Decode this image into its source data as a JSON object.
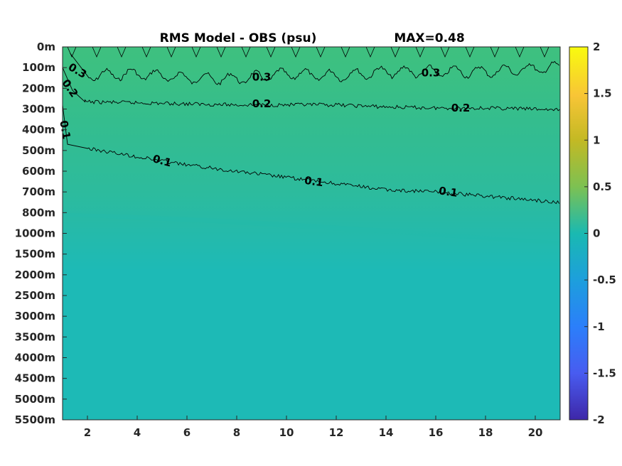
{
  "chart_data": {
    "type": "heatmap",
    "title": "RMS Model - OBS (psu)",
    "annotation": "MAX=0.48",
    "xlabel": "",
    "ylabel": "",
    "xlim": [
      1,
      21
    ],
    "x_ticks": [
      "2",
      "4",
      "6",
      "8",
      "10",
      "12",
      "14",
      "16",
      "18",
      "20"
    ],
    "y_ticks": [
      "0m",
      "100m",
      "200m",
      "300m",
      "400m",
      "500m",
      "600m",
      "700m",
      "800m",
      "1000m",
      "1500m",
      "2000m",
      "2500m",
      "3000m",
      "3500m",
      "4000m",
      "4500m",
      "5000m",
      "5500m"
    ],
    "colorbar": {
      "range": [
        -2,
        2
      ],
      "ticks": [
        "2",
        "1.5",
        "1",
        "0.5",
        "0",
        "-0.5",
        "-1",
        "-1.5",
        "-2"
      ]
    },
    "contour_levels": [
      0.3,
      0.2,
      0.1
    ],
    "contours": [
      {
        "level": 0.3,
        "labels": [
          "0.3",
          "0.3",
          "0.3"
        ],
        "points": [
          [
            1.3,
            0.3
          ],
          [
            2,
            1.4
          ],
          [
            4,
            1.3
          ],
          [
            6,
            1.5
          ],
          [
            8,
            1.55
          ],
          [
            10,
            1.3
          ],
          [
            12,
            1.4
          ],
          [
            14,
            1.2
          ],
          [
            16,
            1.2
          ],
          [
            18,
            1.2
          ],
          [
            20,
            1.05
          ],
          [
            21,
            1.0
          ]
        ]
      },
      {
        "level": 0.2,
        "labels": [
          "0.2",
          "0.2",
          "0.2"
        ],
        "points": [
          [
            1.0,
            1.0
          ],
          [
            1.4,
            2.1
          ],
          [
            1.9,
            2.65
          ],
          [
            4,
            2.7
          ],
          [
            6,
            2.75
          ],
          [
            8,
            2.8
          ],
          [
            10,
            2.8
          ],
          [
            12,
            2.8
          ],
          [
            14,
            2.9
          ],
          [
            16,
            2.95
          ],
          [
            18,
            2.95
          ],
          [
            20,
            3.0
          ],
          [
            21,
            3.05
          ]
        ]
      },
      {
        "level": 0.1,
        "labels": [
          "0.1",
          "0.1",
          "0.1"
        ],
        "points": [
          [
            1.0,
            2.8
          ],
          [
            1.2,
            4.7
          ],
          [
            2,
            4.9
          ],
          [
            4,
            5.3
          ],
          [
            6,
            5.7
          ],
          [
            8,
            6.0
          ],
          [
            10,
            6.3
          ],
          [
            12,
            6.6
          ],
          [
            14,
            6.9
          ],
          [
            16,
            7.0
          ],
          [
            18,
            7.2
          ],
          [
            20,
            7.4
          ],
          [
            21,
            7.5
          ]
        ]
      }
    ],
    "colors": {
      "surface": "#3ec07f",
      "upper": "#35bd8c",
      "mid": "#2bbaa0",
      "deep": "#1dbab6",
      "contour": "#000000"
    }
  }
}
